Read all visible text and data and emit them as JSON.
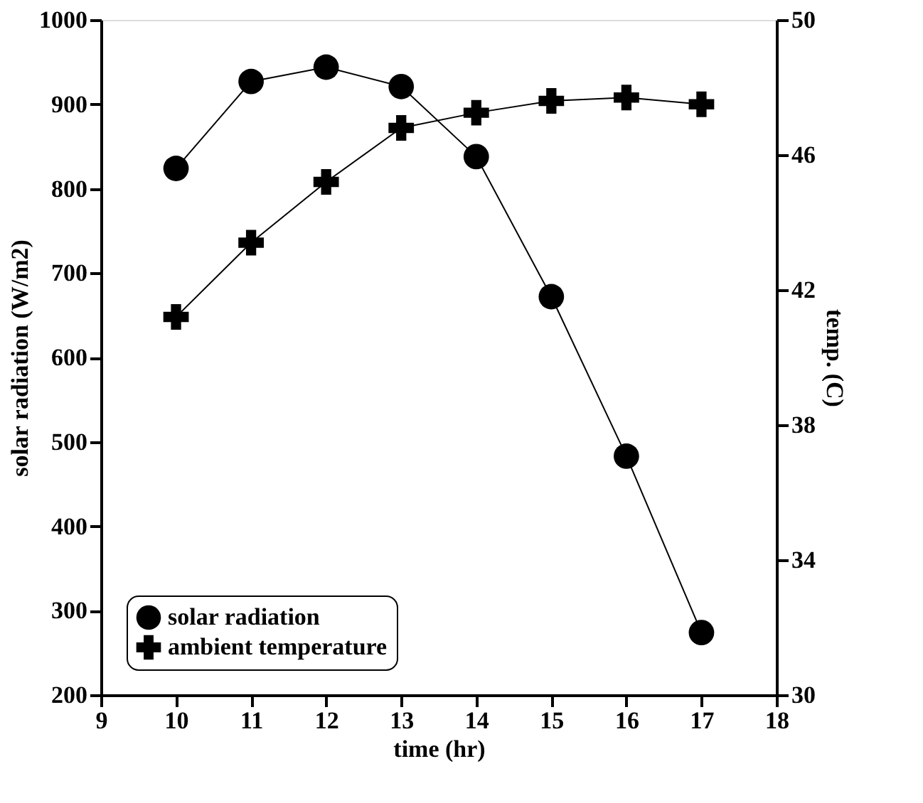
{
  "chart_data": {
    "type": "line",
    "xlabel": "time (hr)",
    "ylabel": "solar radiation (W/m2)",
    "y2label": "temp. (C)",
    "x": [
      10,
      11,
      12,
      13,
      14,
      15,
      16,
      17
    ],
    "series": [
      {
        "name": "solar radiation",
        "color": "#000000",
        "marker": "circle",
        "values": [
          824,
          927,
          944,
          921,
          838,
          672,
          483,
          274
        ]
      },
      {
        "name": "ambient temperature",
        "color": "#000000",
        "marker": "cross",
        "axis": "y2",
        "values": [
          41.2,
          43.4,
          45.2,
          46.8,
          47.25,
          47.6,
          47.7,
          47.5
        ]
      }
    ],
    "xlim": [
      9,
      18
    ],
    "xticks": [
      9,
      10,
      11,
      12,
      13,
      14,
      15,
      16,
      17,
      18
    ],
    "ylim": [
      200,
      1000
    ],
    "yticks": [
      200,
      300,
      400,
      500,
      600,
      700,
      800,
      900,
      1000
    ],
    "y2lim": [
      30,
      50
    ],
    "y2ticks": [
      30,
      34,
      38,
      42,
      46,
      50
    ],
    "grid": false,
    "legend": "bottom left",
    "line_style": "solid"
  }
}
